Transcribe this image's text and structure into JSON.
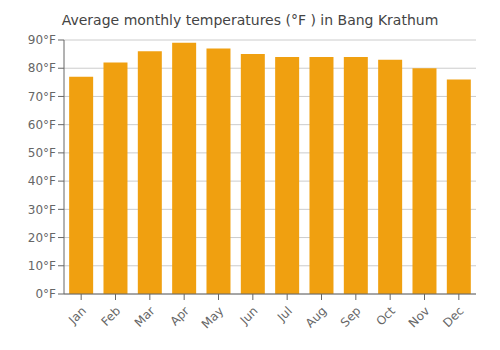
{
  "chart_data": {
    "type": "bar",
    "title": "Average monthly temperatures (°F ) in Bang Krathum",
    "categories": [
      "Jan",
      "Feb",
      "Mar",
      "Apr",
      "May",
      "Jun",
      "Jul",
      "Aug",
      "Sep",
      "Oct",
      "Nov",
      "Dec"
    ],
    "values": [
      77,
      82,
      86,
      89,
      87,
      85,
      84,
      84,
      84,
      83,
      80,
      76
    ],
    "color": "#F0A010",
    "ylim": [
      0,
      90
    ],
    "yticks": [
      {
        "value": 0,
        "label": "0°F"
      },
      {
        "value": 10,
        "label": "10°F"
      },
      {
        "value": 20,
        "label": "20°F"
      },
      {
        "value": 30,
        "label": "30°F"
      },
      {
        "value": 40,
        "label": "40°F"
      },
      {
        "value": 50,
        "label": "50°F"
      },
      {
        "value": 60,
        "label": "60°F"
      },
      {
        "value": 70,
        "label": "70°F"
      },
      {
        "value": 80,
        "label": "80°F"
      },
      {
        "value": 90,
        "label": "90°F"
      }
    ],
    "grid": true
  }
}
